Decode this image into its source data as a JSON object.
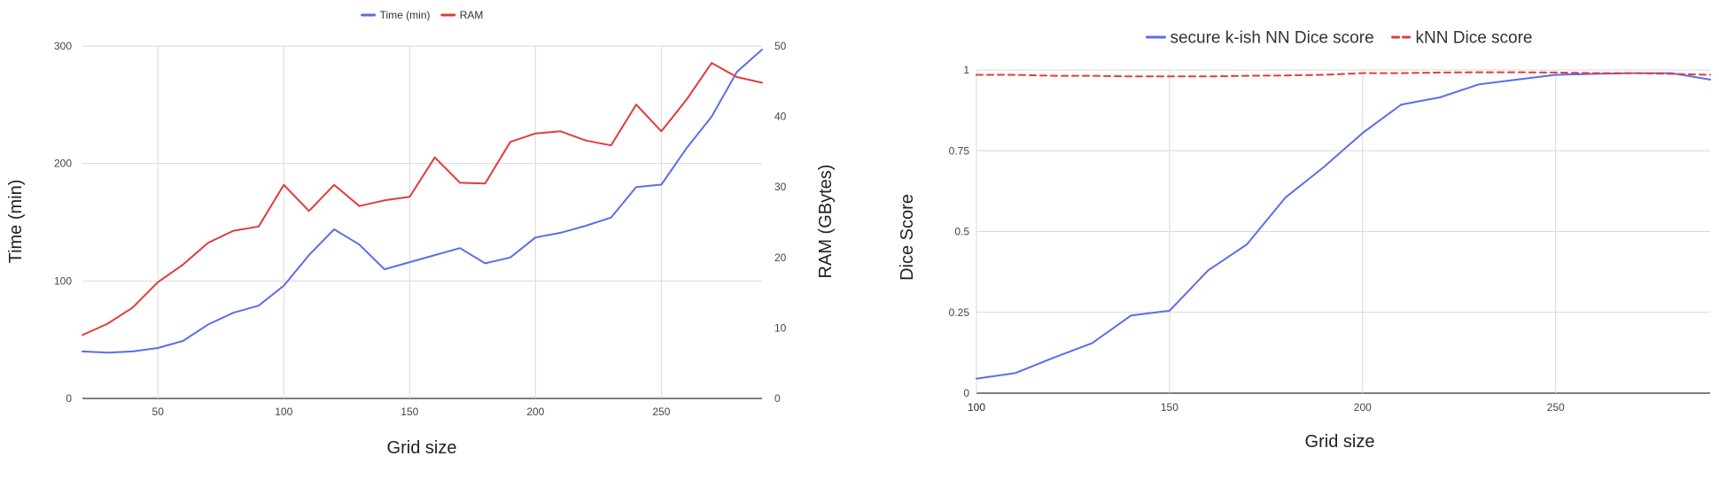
{
  "chart_data": [
    {
      "type": "line",
      "xlabel": "Grid size",
      "ylabel": "Time (min)",
      "y2label": "RAM (GBytes)",
      "x_ticks": [
        50,
        100,
        150,
        200,
        250
      ],
      "y_ticks": [
        0,
        100,
        200,
        300
      ],
      "y2_ticks": [
        0,
        10,
        20,
        30,
        40,
        50
      ],
      "xlim": [
        20,
        290
      ],
      "ylim": [
        0,
        300
      ],
      "y2lim": [
        0,
        50
      ],
      "grid": true,
      "legend_position": "top-center",
      "x": [
        20,
        30,
        40,
        50,
        60,
        70,
        80,
        90,
        100,
        110,
        120,
        130,
        140,
        150,
        160,
        170,
        180,
        190,
        200,
        210,
        220,
        230,
        240,
        250,
        260,
        270,
        280,
        290
      ],
      "series": [
        {
          "name": "Time (min)",
          "axis": "left",
          "color": "#5b6ee8",
          "style": "solid",
          "values": [
            40,
            39,
            40,
            43,
            49,
            63,
            73,
            79,
            96,
            122,
            144,
            131,
            110,
            116,
            122,
            128,
            115,
            120,
            137,
            141,
            147,
            154,
            180,
            182,
            213,
            240,
            278,
            297
          ]
        },
        {
          "name": "RAM",
          "axis": "right",
          "color": "#e03c3c",
          "style": "solid",
          "values": [
            9,
            10.6,
            12.9,
            16.5,
            19,
            22.1,
            23.8,
            24.4,
            30.3,
            26.6,
            30.3,
            27.3,
            28.1,
            28.6,
            34.2,
            30.6,
            30.5,
            36.4,
            37.6,
            37.9,
            36.6,
            35.9,
            41.7,
            37.9,
            42.4,
            47.6,
            45.6,
            44.8
          ]
        }
      ]
    },
    {
      "type": "line",
      "xlabel": "Grid size",
      "ylabel": "Dice Score",
      "x_ticks": [
        100,
        150,
        200,
        250
      ],
      "y_ticks": [
        0,
        0.25,
        0.5,
        0.75,
        1
      ],
      "y_tick_labels": [
        "0",
        "0.25",
        "0.5",
        "0.75",
        "1"
      ],
      "xlim": [
        100,
        290
      ],
      "ylim": [
        0,
        1
      ],
      "grid": true,
      "legend_position": "top-center",
      "x": [
        100,
        110,
        120,
        130,
        140,
        150,
        160,
        170,
        180,
        190,
        200,
        210,
        220,
        230,
        240,
        250,
        260,
        270,
        280,
        290
      ],
      "series": [
        {
          "name": "secure k-ish NN Dice score",
          "color": "#5b6ee8",
          "style": "solid",
          "values": [
            0.045,
            0.062,
            0.11,
            0.155,
            0.24,
            0.255,
            0.38,
            0.46,
            0.605,
            0.7,
            0.805,
            0.893,
            0.915,
            0.955,
            0.97,
            0.985,
            0.988,
            0.99,
            0.99,
            0.97
          ]
        },
        {
          "name": "kNN Dice score",
          "color": "#e03c3c",
          "style": "dashed",
          "values": [
            0.985,
            0.985,
            0.982,
            0.982,
            0.98,
            0.98,
            0.98,
            0.982,
            0.983,
            0.985,
            0.99,
            0.99,
            0.992,
            0.993,
            0.993,
            0.992,
            0.99,
            0.99,
            0.988,
            0.985
          ]
        }
      ]
    }
  ]
}
